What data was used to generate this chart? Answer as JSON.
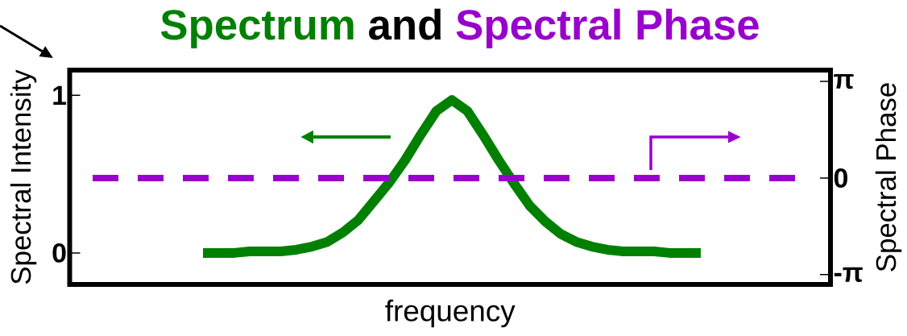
{
  "chart_data": {
    "type": "line",
    "title": "Spectrum and Spectral Phase",
    "xlabel": "frequency",
    "ylabel": "Spectral Intensity",
    "y2label": "Spectral Phase",
    "categories": [
      null,
      null,
      null,
      null,
      null,
      null,
      null,
      null,
      null,
      null,
      null,
      null,
      null,
      null,
      null,
      null,
      null,
      null,
      null,
      null,
      null,
      null,
      null,
      null,
      null,
      null,
      null,
      null,
      null,
      null,
      null,
      null,
      null
    ],
    "series": [
      {
        "color": "#008000",
        "values": [
          0,
          0,
          0,
          0.01,
          0.01,
          0.01,
          0.02,
          0.04,
          0.07,
          0.13,
          0.21,
          0.33,
          0.45,
          0.59,
          0.75,
          0.9,
          0.97,
          0.9,
          0.75,
          0.59,
          0.44,
          0.3,
          0.2,
          0.12,
          0.07,
          0.04,
          0.02,
          0.01,
          0.01,
          0.01,
          0,
          0,
          0
        ]
      }
    ],
    "ref_lines": [
      {
        "axis": "y2",
        "value": 0,
        "color": "#9900cc",
        "line_style": "dashed"
      }
    ],
    "ylim": [
      -0.2,
      1.16
    ],
    "yticks": [
      0,
      1
    ],
    "y2lim": [
      -3.46,
      3.51
    ],
    "y2ticks": [
      {
        "value": -3.1416,
        "label": "-π"
      },
      0,
      {
        "value": 3.1416,
        "label": "π"
      }
    ]
  }
}
